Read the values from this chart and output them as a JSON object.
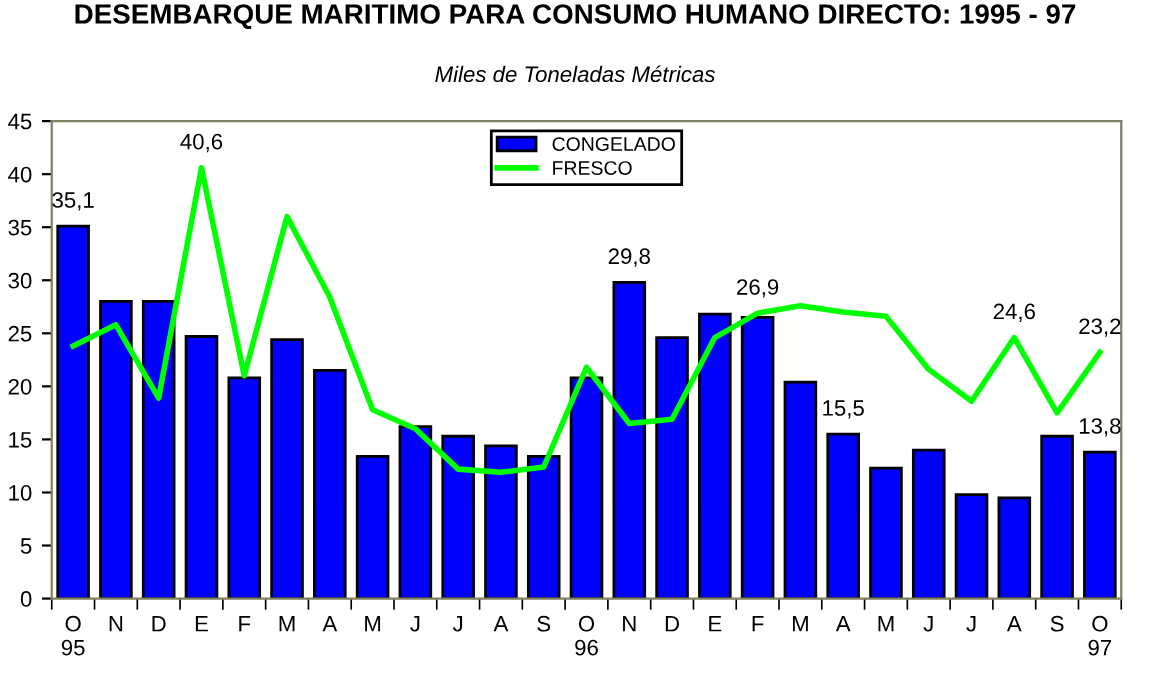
{
  "chart_data": {
    "type": "bar",
    "title": "DESEMBARQUE MARITIMO PARA CONSUMO HUMANO DIRECTO: 1995 - 97",
    "subtitle": "Miles de Toneladas Métricas",
    "categories": [
      "O\n95",
      "N",
      "D",
      "E",
      "F",
      "M",
      "A",
      "M",
      "J",
      "J",
      "A",
      "S",
      "O\n96",
      "N",
      "D",
      "E",
      "F",
      "M",
      "A",
      "M",
      "J",
      "J",
      "A",
      "S",
      "O\n97"
    ],
    "series": [
      {
        "name": "CONGELADO",
        "color": "#0000ff",
        "values": [
          35.1,
          28.0,
          28.0,
          24.7,
          20.8,
          24.4,
          21.5,
          13.4,
          16.2,
          15.3,
          14.4,
          13.4,
          20.8,
          29.8,
          24.6,
          26.8,
          26.5,
          20.4,
          15.5,
          12.3,
          14.0,
          9.8,
          9.5,
          15.3,
          13.8
        ],
        "value_labels": [
          "35,1",
          null,
          null,
          null,
          null,
          null,
          null,
          null,
          null,
          null,
          null,
          null,
          null,
          "29,8",
          null,
          null,
          null,
          null,
          "15,5",
          null,
          null,
          null,
          null,
          null,
          "13,8"
        ]
      },
      {
        "name": "FRESCO",
        "type": "line",
        "color": "#00ff00",
        "values": [
          23.8,
          25.8,
          18.9,
          40.6,
          21.0,
          36.0,
          28.4,
          17.8,
          16.0,
          12.2,
          11.9,
          12.4,
          21.8,
          16.5,
          16.9,
          24.6,
          26.9,
          27.6,
          27.0,
          26.6,
          21.6,
          18.6,
          24.6,
          17.5,
          23.2
        ],
        "value_labels": [
          null,
          null,
          null,
          "40,6",
          null,
          null,
          null,
          null,
          null,
          null,
          null,
          null,
          null,
          null,
          null,
          null,
          "26,9",
          null,
          null,
          null,
          null,
          null,
          "24,6",
          null,
          "23,2"
        ]
      }
    ],
    "ylim": [
      0,
      45
    ],
    "yticks": [
      0,
      5,
      10,
      15,
      20,
      25,
      30,
      35,
      40,
      45
    ],
    "grid": false,
    "legend": "top",
    "marker": "none",
    "line_style": "solid"
  }
}
